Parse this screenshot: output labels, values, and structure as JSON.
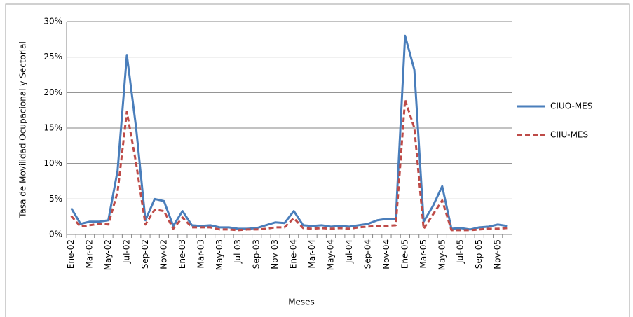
{
  "chart_data": {
    "type": "line",
    "y_label": "Tasa de Movilidad Ocupacional y Sectorial",
    "x_label": "Meses",
    "categories": [
      "Ene-02",
      null,
      "Mar-02",
      null,
      "May-02",
      null,
      "Jul-02",
      null,
      "Sep-02",
      null,
      "Nov-02",
      null,
      "Ene-03",
      null,
      "Mar-03",
      null,
      "May-03",
      null,
      "Jul-03",
      null,
      "Sep-03",
      null,
      "Nov-03",
      null,
      "Ene-04",
      null,
      "Mar-04",
      null,
      "May-04",
      null,
      "Jul-04",
      null,
      "Sep-04",
      null,
      "Nov-04",
      null,
      "Ene-05",
      null,
      "Mar-05",
      null,
      "May-05",
      null,
      "Jul-05",
      null,
      "Sep-05",
      null,
      "Nov-05",
      null
    ],
    "series": [
      {
        "name": "CIUO-MES",
        "color": "#4a7ebb",
        "dash": false,
        "values": [
          3.7,
          1.5,
          1.8,
          1.8,
          2.0,
          9.0,
          25.3,
          15.0,
          2.0,
          5.0,
          4.7,
          1.2,
          3.3,
          1.3,
          1.2,
          1.3,
          1.0,
          1.0,
          0.8,
          0.8,
          0.9,
          1.3,
          1.7,
          1.6,
          3.3,
          1.3,
          1.2,
          1.3,
          1.1,
          1.2,
          1.1,
          1.3,
          1.5,
          2.0,
          2.2,
          2.2,
          28.0,
          23.2,
          1.8,
          4.0,
          6.8,
          0.8,
          0.9,
          0.7,
          1.0,
          1.1,
          1.4,
          1.2
        ]
      },
      {
        "name": "CIIU-MES",
        "color": "#be4b48",
        "dash": true,
        "values": [
          2.6,
          1.1,
          1.3,
          1.5,
          1.4,
          6.0,
          17.3,
          10.0,
          1.4,
          3.5,
          3.3,
          0.8,
          2.4,
          1.0,
          1.0,
          1.0,
          0.7,
          0.7,
          0.6,
          0.7,
          0.7,
          0.8,
          1.0,
          1.0,
          2.3,
          0.9,
          0.8,
          0.9,
          0.8,
          0.9,
          0.8,
          1.0,
          1.1,
          1.2,
          1.2,
          1.3,
          19.0,
          15.0,
          0.8,
          2.8,
          4.8,
          0.6,
          0.6,
          0.6,
          0.7,
          0.8,
          0.8,
          0.9
        ]
      }
    ],
    "ylim": [
      0,
      30
    ],
    "yticks": [
      {
        "value": 0,
        "label": "0%"
      },
      {
        "value": 5,
        "label": "5%"
      },
      {
        "value": 10,
        "label": "10%"
      },
      {
        "value": 15,
        "label": "15%"
      },
      {
        "value": 20,
        "label": "20%"
      },
      {
        "value": 25,
        "label": "25%"
      },
      {
        "value": 30,
        "label": "30%"
      }
    ],
    "grid": true,
    "legend": "right"
  }
}
